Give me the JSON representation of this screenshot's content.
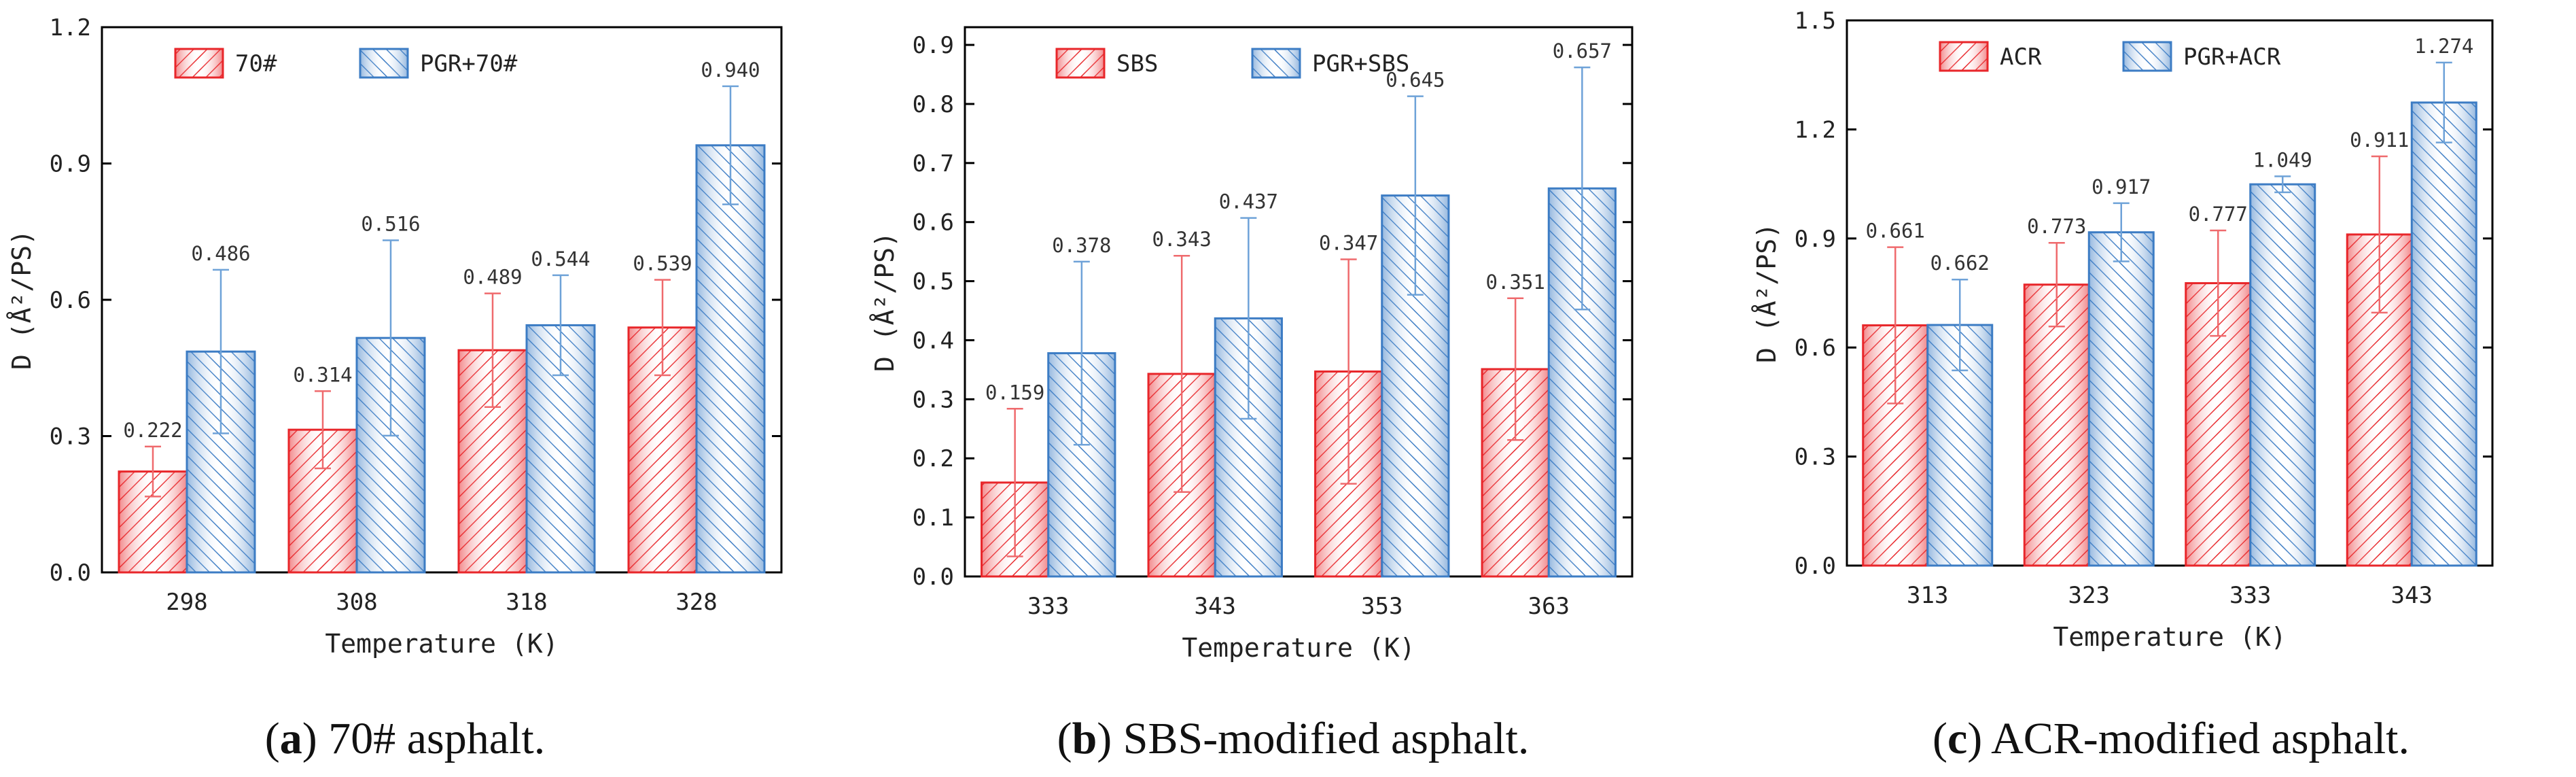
{
  "chart_data": [
    {
      "type": "bar",
      "caption_letter": "a",
      "caption_text": "70# asphalt.",
      "xlabel": "Temperature (K)",
      "ylabel": "D (Å²/PS)",
      "categories": [
        "298",
        "308",
        "318",
        "328"
      ],
      "ylim": [
        0,
        1.2
      ],
      "yticks": [
        0.0,
        0.3,
        0.6,
        0.9,
        1.2
      ],
      "ytick_labels": [
        "0.0",
        "0.3",
        "0.6",
        "0.9",
        "1.2"
      ],
      "series": [
        {
          "name": "70#",
          "color": "#e8262a",
          "values": [
            0.222,
            0.314,
            0.489,
            0.539
          ],
          "labels": [
            "0.222",
            "0.314",
            "0.489",
            "0.539"
          ],
          "errors": [
            0.055,
            0.085,
            0.125,
            0.105
          ]
        },
        {
          "name": "PGR+70#",
          "color": "#3c7cc4",
          "values": [
            0.486,
            0.516,
            0.544,
            0.94
          ],
          "labels": [
            "0.486",
            "0.516",
            "0.544",
            "0.940"
          ],
          "errors": [
            0.18,
            0.215,
            0.11,
            0.13
          ]
        }
      ]
    },
    {
      "type": "bar",
      "caption_letter": "b",
      "caption_text": "SBS-modified asphalt.",
      "xlabel": "Temperature (K)",
      "ylabel": "D (Å²/PS)",
      "categories": [
        "333",
        "343",
        "353",
        "363"
      ],
      "ylim": [
        0,
        0.93
      ],
      "yticks": [
        0.0,
        0.1,
        0.2,
        0.3,
        0.4,
        0.5,
        0.6,
        0.7,
        0.8,
        0.9
      ],
      "ytick_labels": [
        "0.0",
        "0.1",
        "0.2",
        "0.3",
        "0.4",
        "0.5",
        "0.6",
        "0.7",
        "0.8",
        "0.9"
      ],
      "series": [
        {
          "name": "SBS",
          "color": "#e8262a",
          "values": [
            0.159,
            0.343,
            0.347,
            0.351
          ],
          "labels": [
            "0.159",
            "0.343",
            "0.347",
            "0.351"
          ],
          "errors": [
            0.125,
            0.2,
            0.19,
            0.12
          ]
        },
        {
          "name": "PGR+SBS",
          "color": "#3c7cc4",
          "values": [
            0.378,
            0.437,
            0.645,
            0.657
          ],
          "labels": [
            "0.378",
            "0.437",
            "0.645",
            "0.657"
          ],
          "errors": [
            0.155,
            0.17,
            0.168,
            0.205
          ]
        }
      ]
    },
    {
      "type": "bar",
      "caption_letter": "c",
      "caption_text": "ACR-modified asphalt.",
      "xlabel": "Temperature (K)",
      "ylabel": "D (Å²/PS)",
      "categories": [
        "313",
        "323",
        "333",
        "343"
      ],
      "ylim": [
        0,
        1.5
      ],
      "yticks": [
        0.0,
        0.3,
        0.6,
        0.9,
        1.2,
        1.5
      ],
      "ytick_labels": [
        "0.0",
        "0.3",
        "0.6",
        "0.9",
        "1.2",
        "1.5"
      ],
      "series": [
        {
          "name": "ACR",
          "color": "#e8262a",
          "values": [
            0.661,
            0.773,
            0.777,
            0.911
          ],
          "labels": [
            "0.661",
            "0.773",
            "0.777",
            "0.911"
          ],
          "errors": [
            0.215,
            0.115,
            0.145,
            0.215
          ]
        },
        {
          "name": "PGR+ACR",
          "color": "#3c7cc4",
          "values": [
            0.662,
            0.917,
            1.049,
            1.274
          ],
          "labels": [
            "0.662",
            "0.917",
            "1.049",
            "1.274"
          ],
          "errors": [
            0.125,
            0.08,
            0.022,
            0.11
          ]
        }
      ]
    }
  ]
}
